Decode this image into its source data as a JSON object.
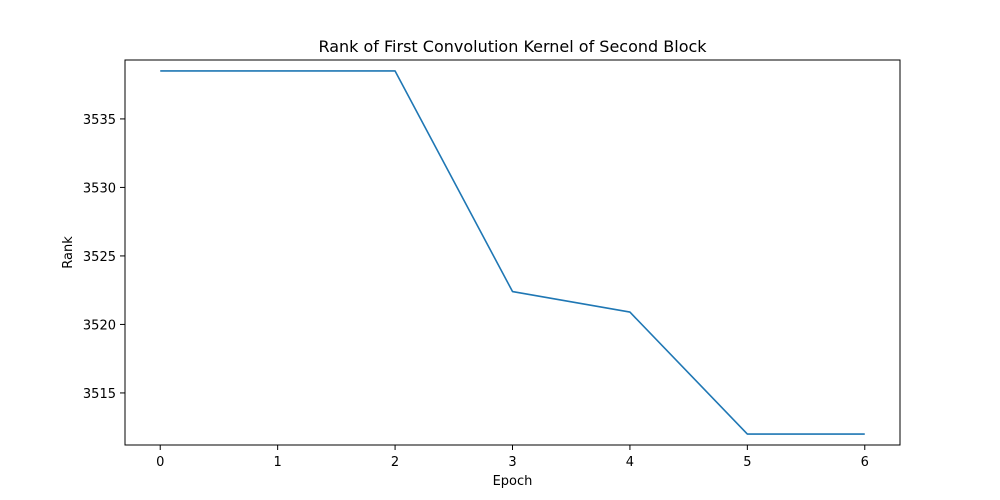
{
  "chart_data": {
    "type": "line",
    "title": "Rank of First Convolution Kernel of Second Block",
    "xlabel": "Epoch",
    "ylabel": "Rank",
    "x": [
      0,
      1,
      2,
      3,
      4,
      5,
      6
    ],
    "series": [
      {
        "values": [
          3538.5,
          3538.5,
          3538.5,
          3522.4,
          3520.9,
          3512.0,
          3512.0
        ],
        "color": "#1f77b4"
      }
    ],
    "xlim": [
      -0.3,
      6.3
    ],
    "ylim": [
      3511.2,
      3539.3
    ],
    "xticks": [
      0,
      1,
      2,
      3,
      4,
      5,
      6
    ],
    "xtick_labels": [
      "0",
      "1",
      "2",
      "3",
      "4",
      "5",
      "6"
    ],
    "yticks": [
      3515,
      3520,
      3525,
      3530,
      3535
    ],
    "ytick_labels": [
      "3515",
      "3520",
      "3525",
      "3530",
      "3535"
    ],
    "grid": false,
    "legend": "none"
  }
}
